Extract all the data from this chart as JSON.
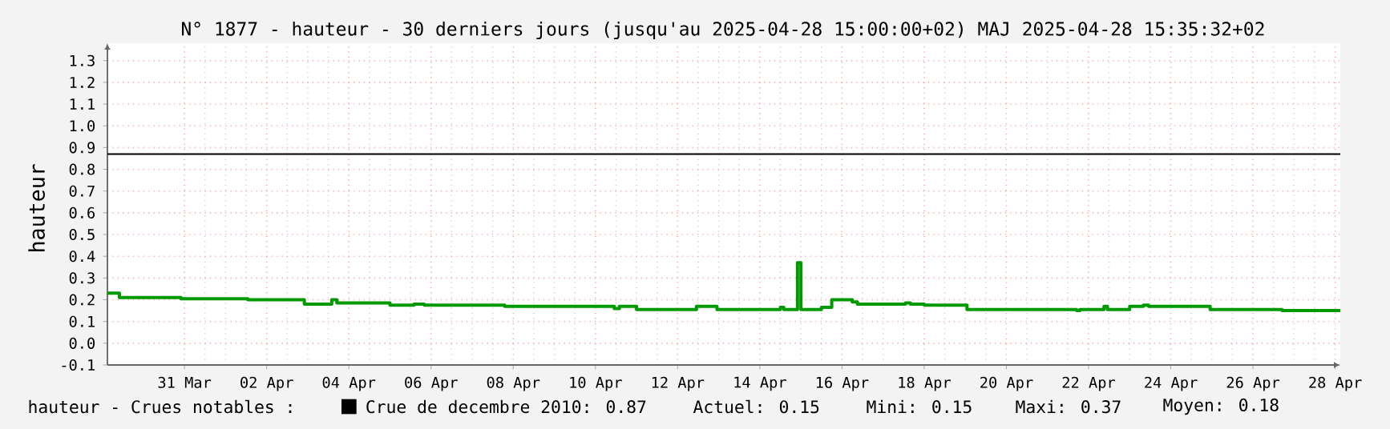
{
  "chart_data": {
    "type": "step",
    "title": "N° 1877 - hauteur - 30 derniers jours (jusqu'au 2025-04-28 15:00:00+02) MAJ 2025-04-28 15:35:32+02",
    "ylabel": "hauteur",
    "series": [
      {
        "color": "#009900",
        "x": [
          "2025-03-29T15:00",
          "2025-03-29T22:00",
          "2025-03-31T10:00",
          "2025-04-02T01:00",
          "2025-04-03T10:00",
          "2025-04-04T02:00",
          "2025-04-04T05:00",
          "2025-04-05T12:00",
          "2025-04-06T02:00",
          "2025-04-06T08:00",
          "2025-04-08T07:00",
          "2025-04-10T23:00",
          "2025-04-11T02:00",
          "2025-04-11T12:00",
          "2025-04-12T23:00",
          "2025-04-13T11:00",
          "2025-04-15T00:00",
          "2025-04-15T02:00",
          "2025-04-15T10:00",
          "2025-04-15T12:00",
          "2025-04-16T00:00",
          "2025-04-16T06:00",
          "2025-04-16T18:00",
          "2025-04-16T21:00",
          "2025-04-18T01:00",
          "2025-04-18T04:00",
          "2025-04-18T12:00",
          "2025-04-19T13:00",
          "2025-04-22T05:00",
          "2025-04-22T07:00",
          "2025-04-22T21:00",
          "2025-04-22T23:00",
          "2025-04-23T12:00",
          "2025-04-23T20:00",
          "2025-04-23T23:00",
          "2025-04-25T11:00",
          "2025-04-27T05:00",
          "2025-04-28T15:00"
        ],
        "values": [
          0.23,
          0.21,
          0.205,
          0.2,
          0.18,
          0.2,
          0.185,
          0.175,
          0.18,
          0.175,
          0.17,
          0.16,
          0.17,
          0.155,
          0.17,
          0.155,
          0.165,
          0.155,
          0.37,
          0.155,
          0.165,
          0.2,
          0.19,
          0.18,
          0.185,
          0.18,
          0.175,
          0.155,
          0.15,
          0.155,
          0.17,
          0.155,
          0.17,
          0.175,
          0.17,
          0.155,
          0.15,
          0.15
        ]
      }
    ],
    "xlim": [
      "2025-03-29T15:00",
      "2025-04-28T15:00"
    ],
    "xticks": [
      {
        "value": "2025-03-31T12:00",
        "label": "31 Mar"
      },
      {
        "value": "2025-04-02T12:00",
        "label": "02 Apr"
      },
      {
        "value": "2025-04-04T12:00",
        "label": "04 Apr"
      },
      {
        "value": "2025-04-06T12:00",
        "label": "06 Apr"
      },
      {
        "value": "2025-04-08T12:00",
        "label": "08 Apr"
      },
      {
        "value": "2025-04-10T12:00",
        "label": "10 Apr"
      },
      {
        "value": "2025-04-12T12:00",
        "label": "12 Apr"
      },
      {
        "value": "2025-04-14T12:00",
        "label": "14 Apr"
      },
      {
        "value": "2025-04-16T12:00",
        "label": "16 Apr"
      },
      {
        "value": "2025-04-18T12:00",
        "label": "18 Apr"
      },
      {
        "value": "2025-04-20T12:00",
        "label": "20 Apr"
      },
      {
        "value": "2025-04-22T12:00",
        "label": "22 Apr"
      },
      {
        "value": "2025-04-24T12:00",
        "label": "24 Apr"
      },
      {
        "value": "2025-04-26T12:00",
        "label": "26 Apr"
      },
      {
        "value": "2025-04-28T12:00",
        "label": "28 Apr"
      }
    ],
    "ylim": [
      -0.1,
      1.38
    ],
    "yticks": [
      -0.1,
      {
        "value": 0,
        "label": "0.0"
      },
      0.1,
      0.2,
      0.3,
      0.4,
      0.5,
      0.6,
      0.7,
      0.8,
      0.9,
      {
        "value": 1,
        "label": "1.0"
      },
      1.1,
      1.2,
      1.3
    ],
    "ref_lines": [
      {
        "axis": "y",
        "value": 0.87,
        "label": "Crue de decembre 2010: 0.87",
        "color": "#000000"
      }
    ],
    "annotations": [
      "hauteur - Crues notables :",
      "Actuel: 0.15",
      "Mini: 0.15",
      "Maxi: 0.37",
      "Moyen: 0.18"
    ],
    "grid": true,
    "legend": "bottom"
  }
}
